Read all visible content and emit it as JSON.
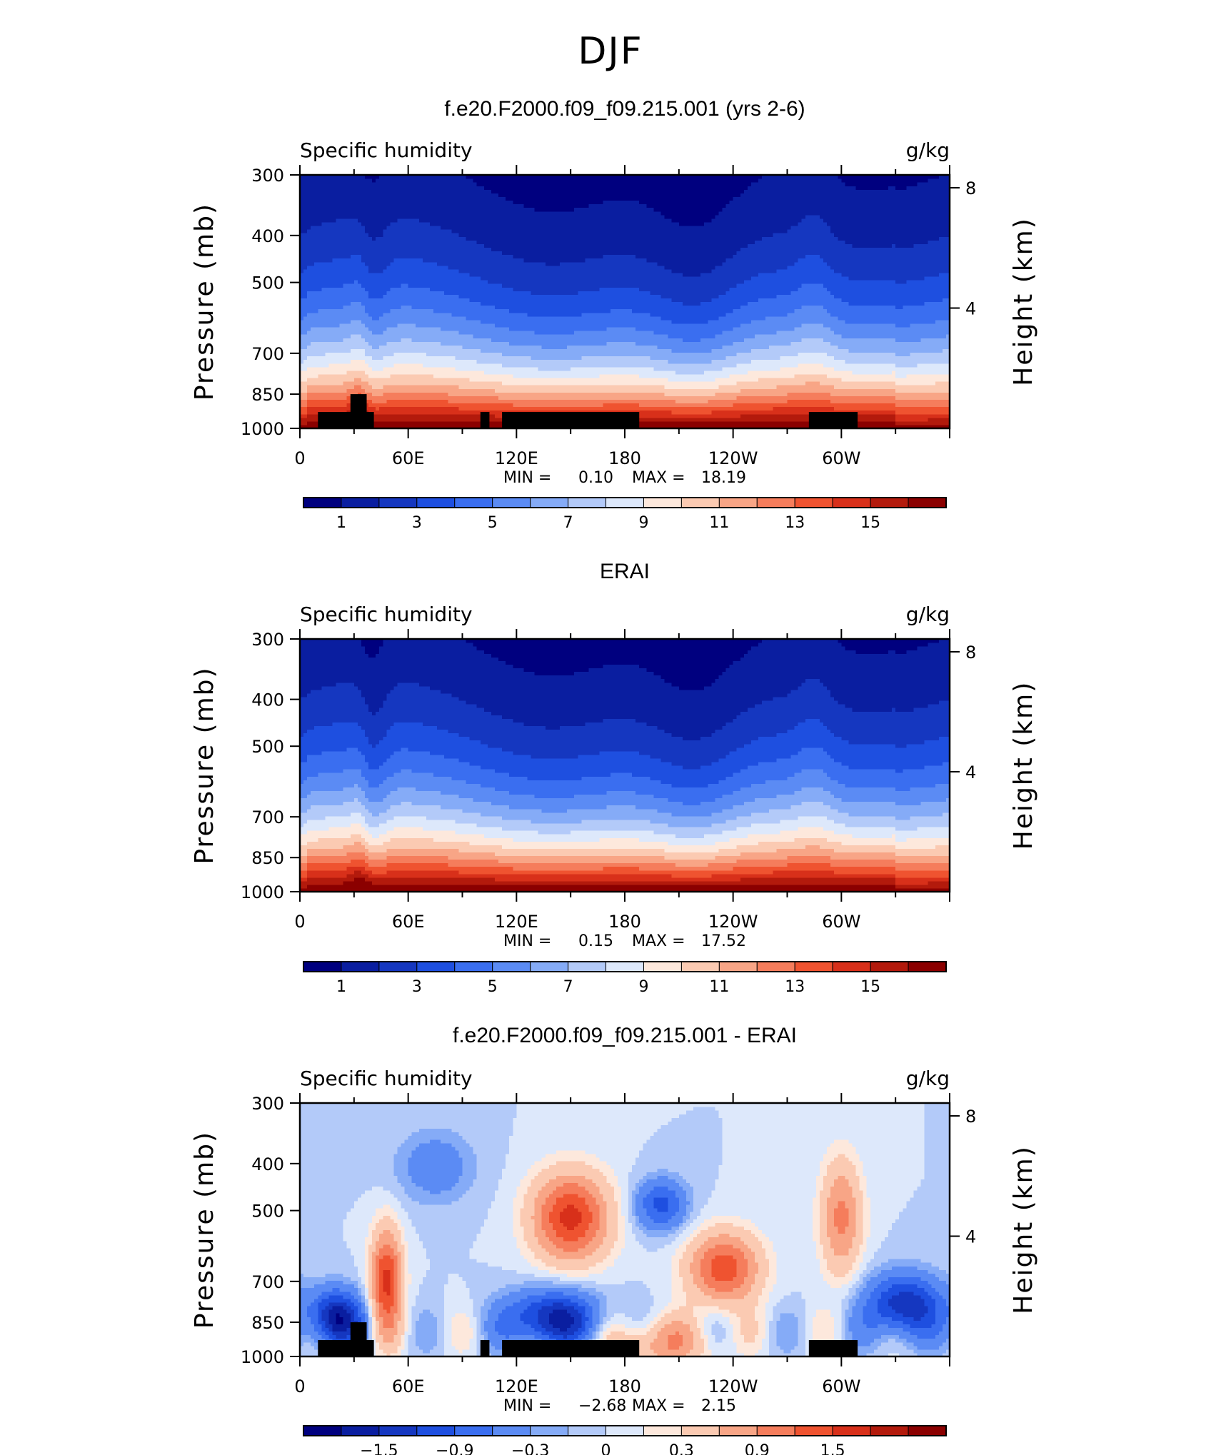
{
  "page_title": "DJF",
  "chart_data": [
    {
      "type": "heatmap",
      "title": "f.e20.F2000.f09_f09.215.001 (yrs 2-6)",
      "left_label": "Specific humidity",
      "right_label": "g/kg",
      "ylabel": "Pressure (mb)",
      "ylabel_right": "Height (km)",
      "x_ticks": [
        "0",
        "60E",
        "120E",
        "180",
        "120W",
        "60W"
      ],
      "y_ticks": [
        "300",
        "400",
        "500",
        "700",
        "850",
        "1000"
      ],
      "y_ticks_right": [
        "8",
        "4"
      ],
      "ylim": [
        1000,
        300
      ],
      "stats": {
        "min_label": "MIN =",
        "min": "0.10",
        "max_label": "MAX =",
        "max": "18.19"
      },
      "colorbar": {
        "labels": [
          "1",
          "3",
          "5",
          "7",
          "9",
          "11",
          "13",
          "15"
        ],
        "colors": [
          "#00007f",
          "#0a1ea0",
          "#1537c0",
          "#1e4fe0",
          "#3a6ef0",
          "#5b8bf4",
          "#85abf7",
          "#b3caf9",
          "#dde8fb",
          "#fde8dc",
          "#fbcab2",
          "#f8a586",
          "#f57d5c",
          "#ef5330",
          "#d8301a",
          "#b31a0c",
          "#8b0000"
        ]
      },
      "field": "model"
    },
    {
      "type": "heatmap",
      "title": "ERAI",
      "left_label": "Specific humidity",
      "right_label": "g/kg",
      "ylabel": "Pressure (mb)",
      "ylabel_right": "Height (km)",
      "x_ticks": [
        "0",
        "60E",
        "120E",
        "180",
        "120W",
        "60W"
      ],
      "y_ticks": [
        "300",
        "400",
        "500",
        "700",
        "850",
        "1000"
      ],
      "y_ticks_right": [
        "8",
        "4"
      ],
      "ylim": [
        1000,
        300
      ],
      "stats": {
        "min_label": "MIN =",
        "min": "0.15",
        "max_label": "MAX =",
        "max": "17.52"
      },
      "colorbar": {
        "labels": [
          "1",
          "3",
          "5",
          "7",
          "9",
          "11",
          "13",
          "15"
        ],
        "colors": [
          "#00007f",
          "#0a1ea0",
          "#1537c0",
          "#1e4fe0",
          "#3a6ef0",
          "#5b8bf4",
          "#85abf7",
          "#b3caf9",
          "#dde8fb",
          "#fde8dc",
          "#fbcab2",
          "#f8a586",
          "#f57d5c",
          "#ef5330",
          "#d8301a",
          "#b31a0c",
          "#8b0000"
        ]
      },
      "field": "obs"
    },
    {
      "type": "heatmap",
      "title": "f.e20.F2000.f09_f09.215.001 - ERAI",
      "left_label": "Specific humidity",
      "right_label": "g/kg",
      "ylabel": "Pressure (mb)",
      "ylabel_right": "Height (km)",
      "x_ticks": [
        "0",
        "60E",
        "120E",
        "180",
        "120W",
        "60W"
      ],
      "y_ticks": [
        "300",
        "400",
        "500",
        "700",
        "850",
        "1000"
      ],
      "y_ticks_right": [
        "8",
        "4"
      ],
      "ylim": [
        1000,
        300
      ],
      "stats": {
        "min_label": "MIN =",
        "min": "−2.68",
        "max_label": "MAX =",
        "max": "2.15"
      },
      "colorbar": {
        "labels": [
          "−1.5",
          "−0.9",
          "−0.3",
          "0",
          "0.3",
          "0.9",
          "1.5"
        ],
        "colors": [
          "#00007f",
          "#0a1ea0",
          "#1537c0",
          "#1e4fe0",
          "#3a6ef0",
          "#5b8bf4",
          "#85abf7",
          "#b3caf9",
          "#dde8fb",
          "#fde8dc",
          "#fbcab2",
          "#f8a586",
          "#f57d5c",
          "#ef5330",
          "#d8301a",
          "#b31a0c",
          "#8b0000"
        ]
      },
      "field": "diff"
    }
  ]
}
